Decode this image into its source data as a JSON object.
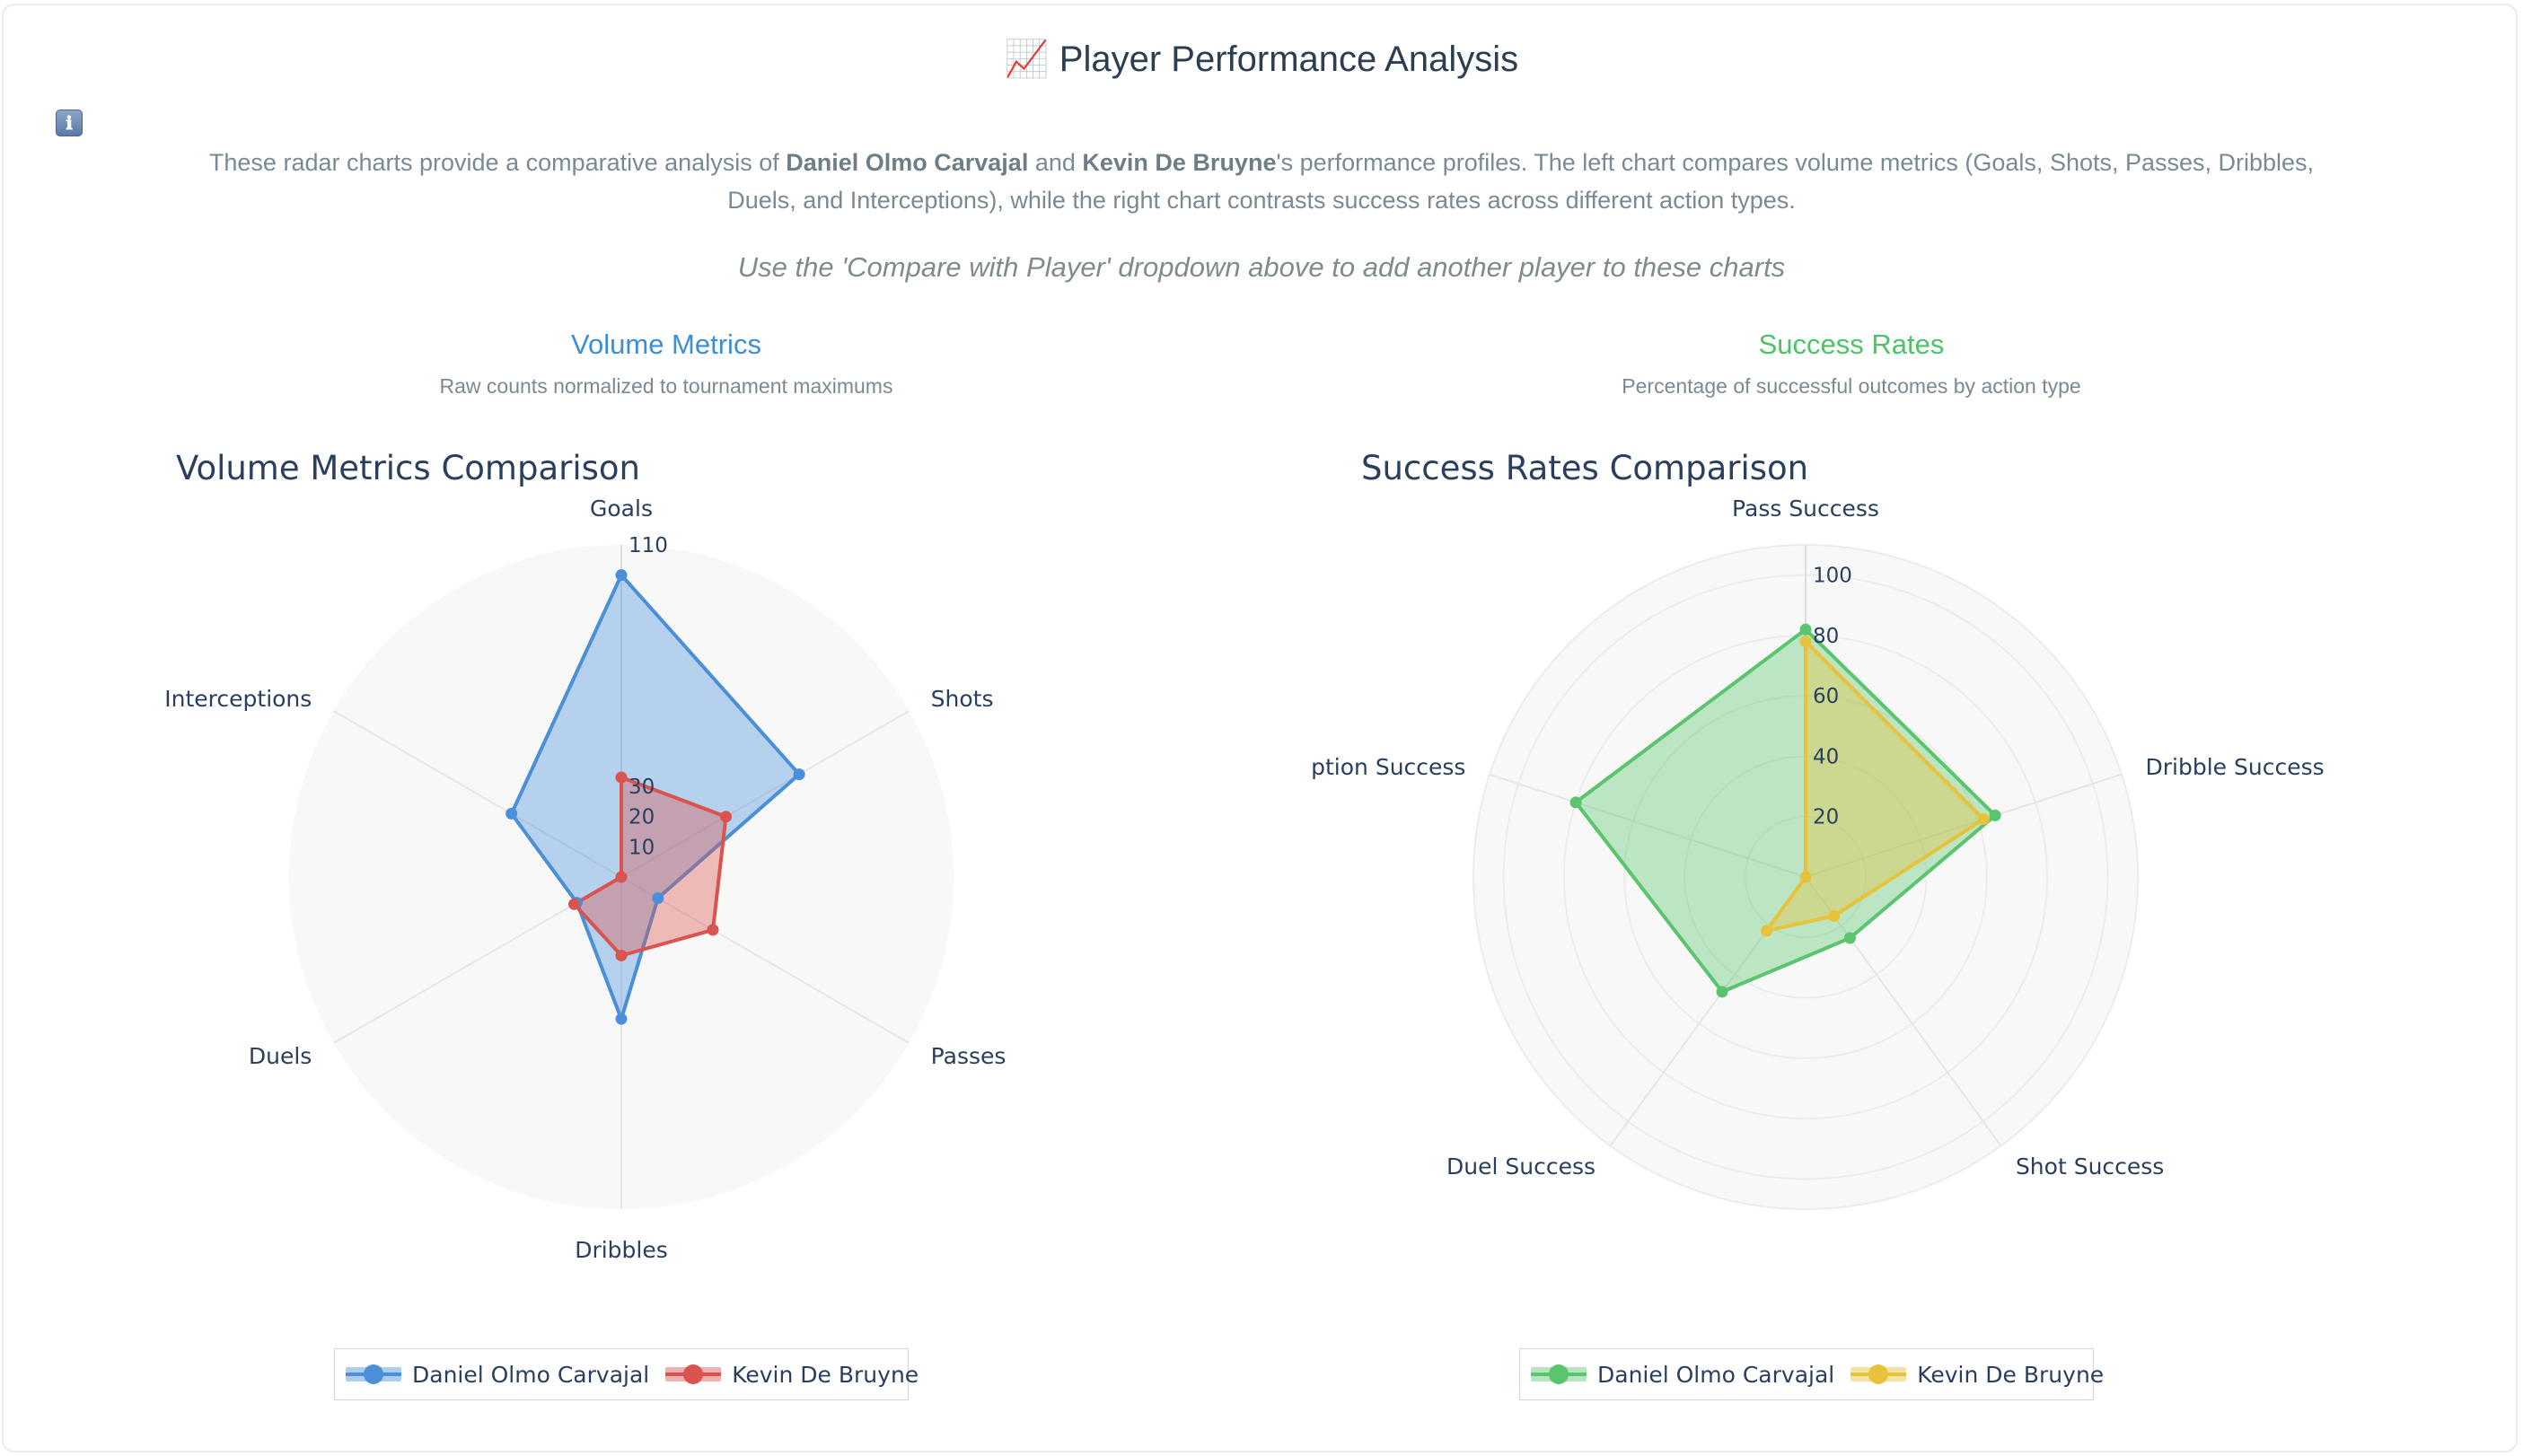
{
  "page": {
    "title": "📈 Player Performance Analysis",
    "info_icon": "ℹ",
    "description_parts": [
      "These radar charts provide a comparative analysis of ",
      "Daniel Olmo Carvajal",
      " and ",
      "Kevin De Bruyne",
      "'s performance profiles. The left chart compares volume metrics (Goals, Shots, Passes, Dribbles, Duels, and Interceptions), while the right chart contrasts success rates across different action types."
    ],
    "hint": "Use the 'Compare with Player' dropdown above to add another player to these charts"
  },
  "sections": {
    "volume": {
      "title": "Volume Metrics",
      "subtitle": "Raw counts normalized to tournament maximums",
      "color": "#3b8fd6"
    },
    "success": {
      "title": "Success Rates",
      "subtitle": "Percentage of successful outcomes by action type",
      "color": "#4cc466"
    }
  },
  "chart_data": [
    {
      "type": "radar",
      "title": "Volume Metrics Comparison",
      "axes": [
        "Goals",
        "Shots",
        "Passes",
        "Dribbles",
        "Duels",
        "Interceptions"
      ],
      "radial_range": [
        0,
        110
      ],
      "radial_ticks": [
        10,
        20,
        30,
        110
      ],
      "legend": "bottom-center",
      "series": [
        {
          "name": "Daniel Olmo Carvajal",
          "color": "#4a90d9",
          "values": [
            100,
            68,
            14,
            47,
            17,
            42
          ]
        },
        {
          "name": "Kevin De Bruyne",
          "color": "#d9534f",
          "values": [
            33,
            40,
            35,
            26,
            18,
            0
          ]
        }
      ]
    },
    {
      "type": "radar",
      "title": "Success Rates Comparison",
      "axes": [
        "Pass Success",
        "Dribble Success",
        "Shot Success",
        "Duel Success",
        "Interception Success"
      ],
      "radial_range": [
        0,
        110
      ],
      "radial_ticks": [
        20,
        40,
        60,
        80,
        100
      ],
      "legend": "bottom-center",
      "series": [
        {
          "name": "Daniel Olmo Carvajal",
          "color": "#5ac46e",
          "values": [
            82,
            66,
            25,
            47,
            80
          ]
        },
        {
          "name": "Kevin De Bruyne",
          "color": "#e8c23a",
          "values": [
            78,
            62,
            16,
            22,
            0
          ]
        }
      ]
    }
  ]
}
